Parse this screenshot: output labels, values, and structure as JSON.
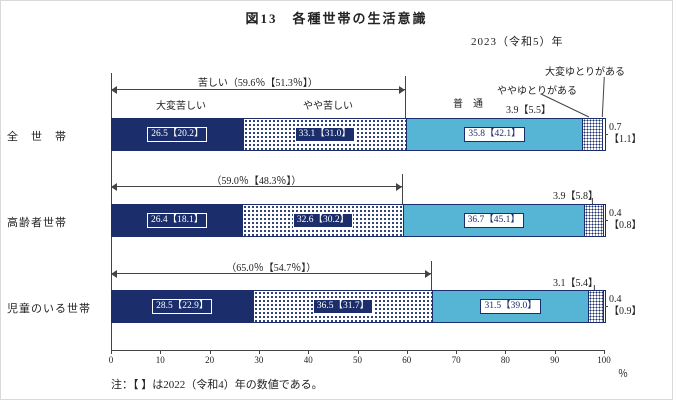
{
  "title": "図13　各種世帯の生活意識",
  "year_label": "2023（令和5）年",
  "note": "注：【 】は2022（令和4）年の数値である。",
  "percent_symbol": "％",
  "colors": {
    "navy": "#1b2e6b",
    "cyan": "#56b4d4",
    "line": "#444444"
  },
  "chart_data": {
    "type": "bar",
    "orientation": "horizontal",
    "stacked": true,
    "xlim": [
      0,
      100
    ],
    "x_ticks": [
      0,
      10,
      20,
      30,
      40,
      50,
      60,
      70,
      80,
      90,
      100
    ],
    "categories": [
      "全　世　帯",
      "高齢者世帯",
      "児童のいる世帯"
    ],
    "segment_labels": {
      "taihen_kurushii": "大変苦しい",
      "yaya_kurushii": "やや苦しい",
      "futsuu": "普　通",
      "yaya_yutori": "ややゆとりがある",
      "taihen_yutori": "大変ゆとりがある"
    },
    "series": [
      {
        "name": "大変苦しい",
        "values": [
          26.5,
          26.4,
          28.5
        ],
        "values_2022": [
          20.2,
          18.1,
          22.9
        ]
      },
      {
        "name": "やや苦しい",
        "values": [
          33.1,
          32.6,
          36.5
        ],
        "values_2022": [
          31.0,
          30.2,
          31.7
        ]
      },
      {
        "name": "普通",
        "values": [
          35.8,
          36.7,
          31.5
        ],
        "values_2022": [
          42.1,
          45.1,
          39.0
        ]
      },
      {
        "name": "ややゆとりがある",
        "values": [
          3.9,
          3.9,
          3.1
        ],
        "values_2022": [
          5.5,
          5.8,
          5.4
        ]
      },
      {
        "name": "大変ゆとりがある",
        "values": [
          0.7,
          0.4,
          0.4
        ],
        "values_2022": [
          1.1,
          0.8,
          0.9
        ]
      }
    ],
    "struggling_totals": [
      {
        "label": "苦しい（59.6％【51.3％】）",
        "value": 59.6
      },
      {
        "label": "（59.0％【48.3％】）",
        "value": 59.0
      },
      {
        "label": "（65.0％【54.7％】）",
        "value": 65.0
      }
    ]
  }
}
